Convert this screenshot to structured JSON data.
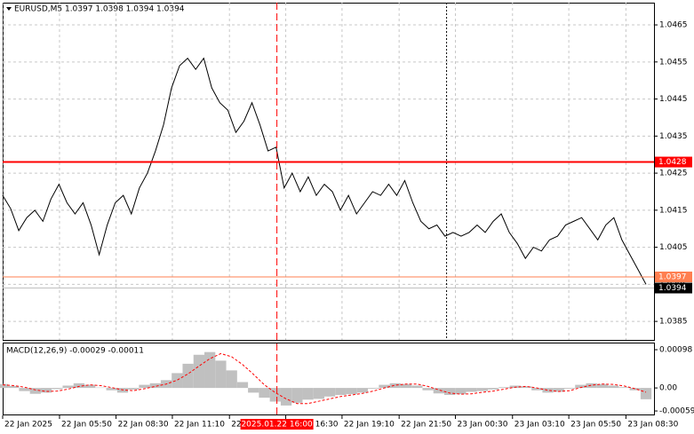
{
  "chart_data": [
    {
      "type": "line",
      "title": "EURUSD,M5  1.0397 1.0398 1.0394 1.0394",
      "color": "#000000",
      "values": [
        1.0419,
        1.04154,
        1.04095,
        1.0413,
        1.0415,
        1.0412,
        1.0418,
        1.0422,
        1.0417,
        1.0414,
        1.0417,
        1.0411,
        1.0403,
        1.0411,
        1.0417,
        1.0419,
        1.0414,
        1.0421,
        1.0425,
        1.0431,
        1.0438,
        1.0448,
        1.0454,
        1.0456,
        1.0453,
        1.0456,
        1.0448,
        1.0444,
        1.0442,
        1.0436,
        1.0439,
        1.0444,
        1.0438,
        1.0431,
        1.0432,
        1.0421,
        1.0425,
        1.042,
        1.0424,
        1.0419,
        1.0422,
        1.042,
        1.0415,
        1.0419,
        1.0414,
        1.0417,
        1.042,
        1.0419,
        1.0422,
        1.0419,
        1.0423,
        1.0417,
        1.0412,
        1.041,
        1.0411,
        1.0408,
        1.0409,
        1.0408,
        1.0409,
        1.0411,
        1.0409,
        1.0412,
        1.0414,
        1.0409,
        1.0406,
        1.0402,
        1.0405,
        1.0404,
        1.0407,
        1.0408,
        1.0411,
        1.0412,
        1.0413,
        1.041,
        1.0407,
        1.0411,
        1.0413,
        1.0407,
        1.0403,
        1.0399,
        1.0395
      ],
      "xlim": [
        0,
        80
      ],
      "xticks": [
        {
          "value": 0,
          "label": "22 Jan 2025"
        },
        {
          "value": 7.07,
          "label": "22 Jan 05:50"
        },
        {
          "value": 14.1,
          "label": "22 Jan 08:30"
        },
        {
          "value": 21.1,
          "label": "22 Jan 11:10"
        },
        {
          "value": 28.2,
          "label": "22 Jan 13:50"
        },
        {
          "value": 35.2,
          "label": "22 Jan 16:30"
        },
        {
          "value": 42.2,
          "label": "22 Jan 19:10"
        },
        {
          "value": 49.3,
          "label": "22 Jan 21:50"
        },
        {
          "value": 56.3,
          "label": "23 Jan 00:30"
        },
        {
          "value": 63.4,
          "label": "23 Jan 03:10"
        },
        {
          "value": 70.4,
          "label": "23 Jan 05:50"
        },
        {
          "value": 77.5,
          "label": "23 Jan 08:30"
        }
      ],
      "ylim": [
        1.038,
        1.0471
      ],
      "yticks": [
        1.0465,
        1.0455,
        1.0445,
        1.0435,
        1.0425,
        1.0415,
        1.0405,
        1.0395,
        1.0385
      ],
      "grid": true,
      "levels": [
        {
          "value": 1.0428,
          "color": "#ff0000"
        },
        {
          "value": 1.0397,
          "color": "#ff7f50"
        },
        {
          "value": 1.0394,
          "color": "#c0c0c0"
        }
      ],
      "cursor": {
        "value": 34.1,
        "label": "2025.01.22 16:00",
        "color": "#ff0000"
      },
      "separator": 55.2
    },
    {
      "type": "macd",
      "title": "MACD(12,26,9) -0.00029 -0.00011",
      "xlim": [
        0,
        59
      ],
      "ylim": [
        -0.00068,
        0.00114
      ],
      "yticks": [
        0.00098,
        {
          "value": 0,
          "label": "0.00"
        },
        -0.00059
      ],
      "series": [
        {
          "type": "bar",
          "color": "#c0c0c0",
          "values": [
            0.0001,
            5e-05,
            -8e-05,
            -0.00015,
            -0.00012,
            -3e-05,
            6e-05,
            0.00012,
            8e-05,
            1e-05,
            -6e-05,
            -0.00012,
            -4e-05,
            8e-05,
            0.00012,
            0.0002,
            0.00038,
            0.00062,
            0.00085,
            0.00092,
            0.0007,
            0.00045,
            0.00015,
            -0.00012,
            -0.00025,
            -0.00035,
            -0.00045,
            -0.00038,
            -0.0003,
            -0.00028,
            -0.00022,
            -0.00018,
            -0.00016,
            -0.00012,
            -2e-05,
            8e-05,
            0.00012,
            0.0001,
            6e-05,
            -6e-05,
            -0.00014,
            -0.00018,
            -0.00016,
            -0.0001,
            -8e-05,
            -4e-05,
            2e-05,
            6e-05,
            4e-05,
            -6e-05,
            -0.00012,
            -0.0001,
            -2e-05,
            8e-05,
            0.00012,
            0.0001,
            6e-05,
            2e-05,
            -6e-05,
            -0.00029
          ]
        },
        {
          "type": "line",
          "color": "#ff0000",
          "values": [
            8e-05,
            6e-05,
            2e-05,
            -5e-05,
            -9e-05,
            -8e-05,
            -3e-05,
            4e-05,
            8e-05,
            6e-05,
            1e-05,
            -5e-05,
            -7e-05,
            -2e-05,
            4e-05,
            0.0001,
            0.0002,
            0.00036,
            0.00056,
            0.00075,
            0.00088,
            0.0008,
            0.0006,
            0.00035,
            8e-05,
            -0.00012,
            -0.00028,
            -0.0004,
            -0.0004,
            -0.00034,
            -0.00028,
            -0.00022,
            -0.00018,
            -0.00014,
            -8e-05,
            0,
            7e-05,
            0.0001,
            0.0001,
            4e-05,
            -5e-05,
            -0.00013,
            -0.00016,
            -0.00015,
            -0.00011,
            -8e-05,
            -3e-05,
            2e-05,
            4e-05,
            0,
            -6e-05,
            -9e-05,
            -7e-05,
            1e-05,
            7e-05,
            0.0001,
            9e-05,
            5e-05,
            -2e-05,
            -0.00011
          ]
        }
      ]
    }
  ]
}
